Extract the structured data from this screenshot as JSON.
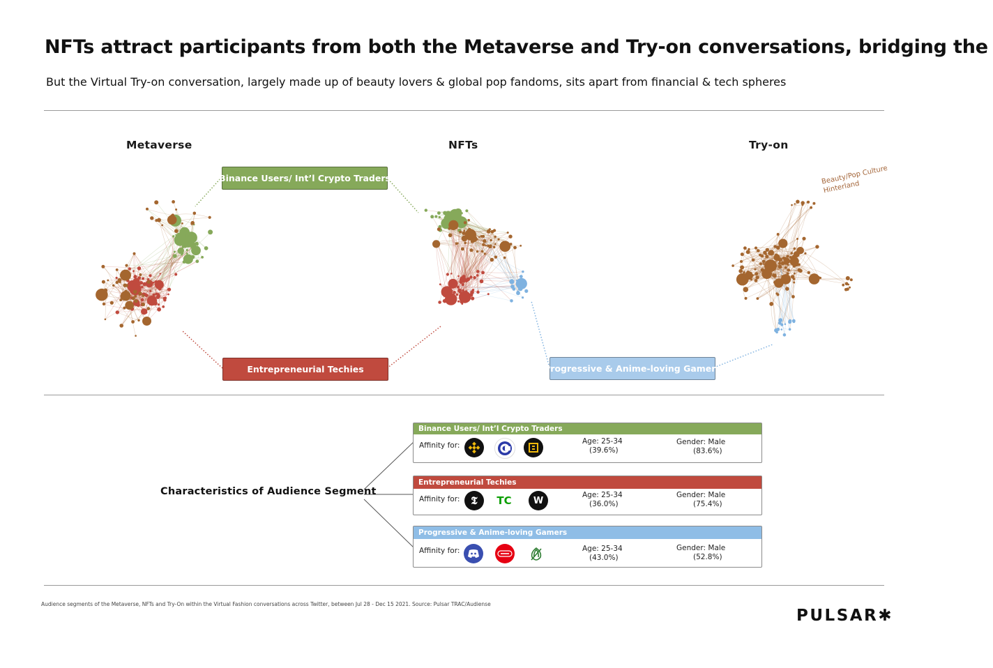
{
  "title": "NFTs attract participants from both the Metaverse and Try-on conversations, bridging the two",
  "subtitle": "But the Virtual Try-on conversation, largely made up of beauty lovers & global pop fandoms, sits apart from financial & tech spheres",
  "columns": {
    "metaverse": "Metaverse",
    "nfts": "NFTs",
    "tryon": "Try-on"
  },
  "segments": {
    "binance": "Binance Users/ Int’l Crypto Traders",
    "techies": "Entrepreneurial Techies",
    "gamers": "Progressive & Anime-loving Gamers",
    "beauty": "Beauty/Pop Culture\nHinterland"
  },
  "colors": {
    "green": "#86a95a",
    "red": "#c04a3e",
    "blue": "#a9cbeb",
    "brown": "#a4662f"
  },
  "characteristics_label": "Characteristics of Audience Segment",
  "cards": [
    {
      "name": "Binance Users/ Int’l Crypto Traders",
      "color": "#86a95a",
      "affinity_label": "Affinity for:",
      "logos": [
        "binance-icon",
        "coinmarketcap-icon",
        "binance-smart-chain-icon"
      ],
      "age_label": "Age: 25-34",
      "age_pct": "(39.6%)",
      "gender_label": "Gender: Male",
      "gender_pct": "(83.6%)"
    },
    {
      "name": "Entrepreneurial Techies",
      "color": "#c04a3e",
      "affinity_label": "Affinity for:",
      "logos": [
        "nytimes-icon",
        "techcrunch-icon",
        "wired-icon"
      ],
      "age_label": "Age: 25-34",
      "age_pct": "(36.0%)",
      "gender_label": "Gender: Male",
      "gender_pct": "(75.4%)"
    },
    {
      "name": "Progressive & Anime-loving Gamers",
      "color": "#a9cbeb",
      "affinity_label": "Affinity for:",
      "logos": [
        "discord-icon",
        "nintendo-icon",
        "onion-icon"
      ],
      "age_label": "Age: 25-34",
      "age_pct": "(43.0%)",
      "gender_label": "Gender: Male",
      "gender_pct": "(52.8%)"
    }
  ],
  "footnote": "Audience segments of the Metaverse, NFTs and Try-On within the Virtual Fashion conversations across Twitter, between Jul 28 - Dec 15  2021. Source: Pulsar TRAC/Audiense",
  "brand": "PULSAR✱"
}
